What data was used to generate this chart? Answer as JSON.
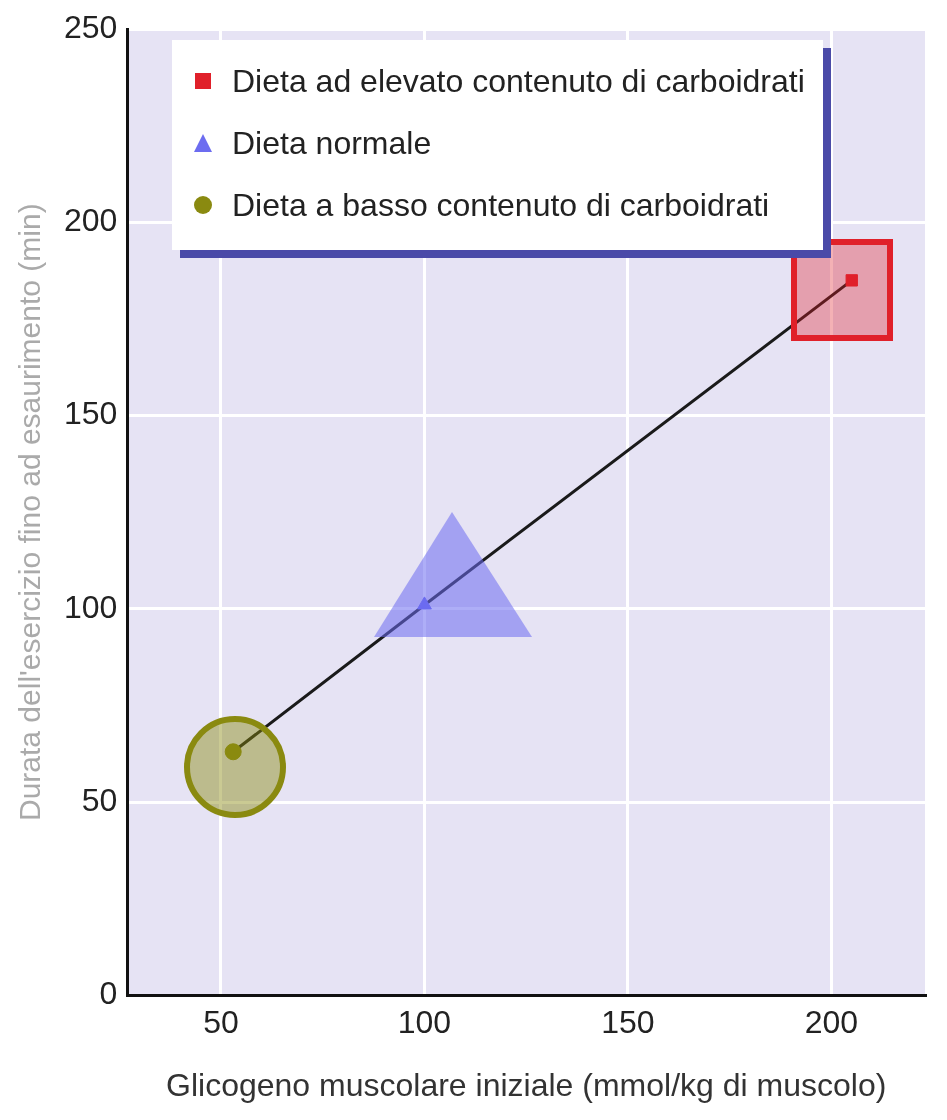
{
  "chart_data": {
    "type": "scatter",
    "xlabel": "Glicogeno muscolare iniziale (mmol/kg di muscolo)",
    "ylabel": "Durata dell'esercizio fino ad esaurimento (min)",
    "xlim": [
      27,
      223
    ],
    "xticks": [
      50,
      100,
      150,
      200
    ],
    "ylim": [
      0,
      250
    ],
    "yticks": [
      0,
      50,
      100,
      150,
      200,
      250
    ],
    "grid": true,
    "legend": "top",
    "series": [
      {
        "type": "line",
        "color": "#1a1a1a",
        "x": [
          53,
          100,
          205
        ],
        "values": [
          63,
          101,
          185
        ],
        "marker": "none",
        "line_style": "solid"
      },
      {
        "name": "Dieta ad elevato contenuto di carboidrati",
        "color": "#e0202a",
        "x": [
          205
        ],
        "values": [
          185
        ],
        "marker": "square"
      },
      {
        "name": "Dieta normale",
        "color": "#6c6cf0",
        "x": [
          100
        ],
        "values": [
          101
        ],
        "marker": "triangle"
      },
      {
        "name": "Dieta a basso contenuto di carboidrati",
        "color": "#8a8a10",
        "x": [
          53
        ],
        "values": [
          63
        ],
        "marker": "circle"
      }
    ]
  }
}
